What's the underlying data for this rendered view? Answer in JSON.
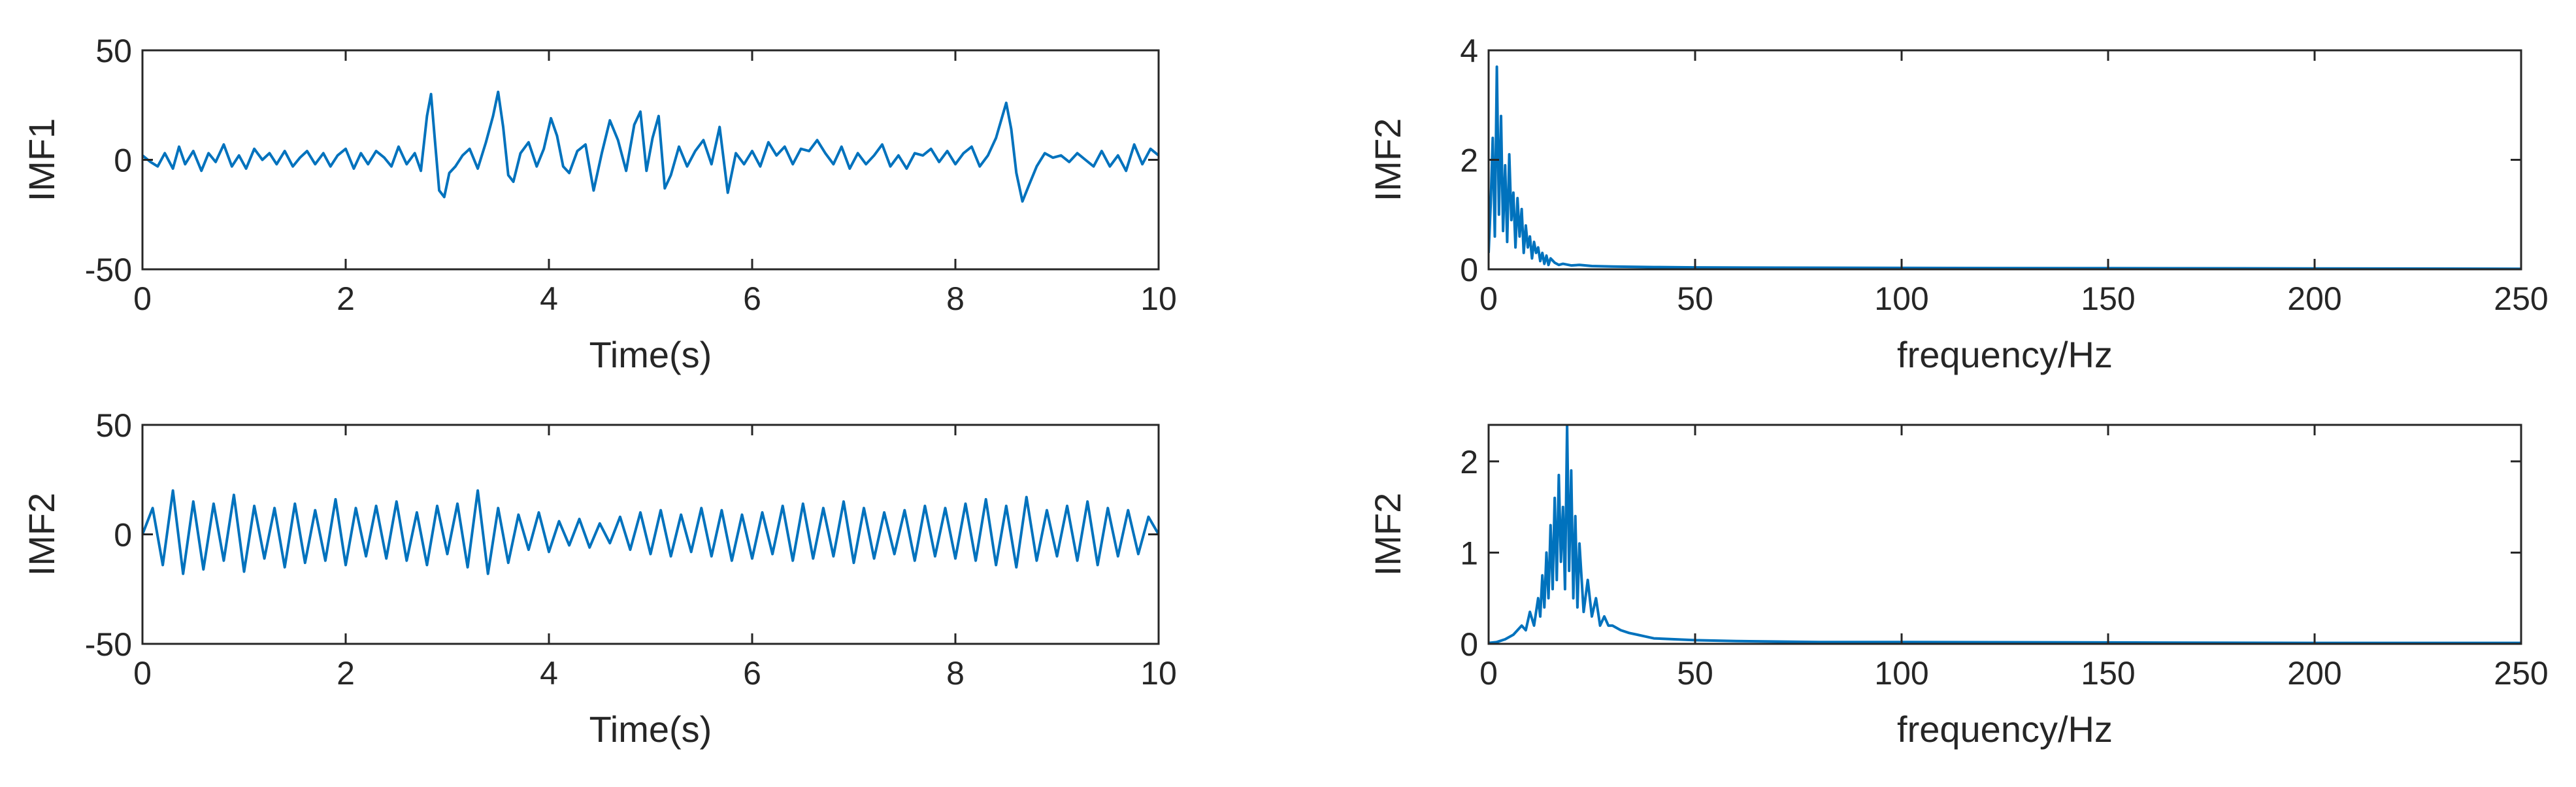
{
  "colors": {
    "line": "#0072BD",
    "axes": "#262626",
    "background": "#ffffff"
  },
  "chart_data": [
    {
      "type": "line",
      "id": "imf1-time",
      "title": "",
      "xlabel": "Time(s)",
      "ylabel": "IMF1",
      "xlim": [
        0,
        10
      ],
      "ylim": [
        -50,
        50
      ],
      "xticks": [
        0,
        2,
        4,
        6,
        8,
        10
      ],
      "yticks": [
        -50,
        0,
        50
      ],
      "grid": false,
      "legend": "none",
      "series": [
        {
          "x": [
            0,
            0.08,
            0.15,
            0.22,
            0.3,
            0.36,
            0.42,
            0.5,
            0.58,
            0.65,
            0.72,
            0.8,
            0.88,
            0.95,
            1.02,
            1.1,
            1.18,
            1.25,
            1.32,
            1.4,
            1.48,
            1.55,
            1.62,
            1.7,
            1.78,
            1.85,
            1.92,
            2.0,
            2.08,
            2.15,
            2.22,
            2.3,
            2.38,
            2.45,
            2.52,
            2.6,
            2.68,
            2.74,
            2.8,
            2.84,
            2.88,
            2.92,
            2.97,
            3.02,
            3.08,
            3.15,
            3.22,
            3.3,
            3.38,
            3.45,
            3.5,
            3.55,
            3.6,
            3.65,
            3.72,
            3.8,
            3.88,
            3.95,
            4.02,
            4.08,
            4.14,
            4.2,
            4.28,
            4.36,
            4.44,
            4.52,
            4.6,
            4.68,
            4.76,
            4.84,
            4.9,
            4.96,
            5.02,
            5.08,
            5.14,
            5.2,
            5.28,
            5.36,
            5.44,
            5.52,
            5.6,
            5.68,
            5.76,
            5.84,
            5.92,
            6.0,
            6.08,
            6.16,
            6.24,
            6.32,
            6.4,
            6.48,
            6.56,
            6.64,
            6.72,
            6.8,
            6.88,
            6.96,
            7.04,
            7.12,
            7.2,
            7.28,
            7.36,
            7.44,
            7.52,
            7.6,
            7.68,
            7.76,
            7.84,
            7.92,
            8.0,
            8.08,
            8.16,
            8.24,
            8.32,
            8.4,
            8.45,
            8.5,
            8.55,
            8.6,
            8.66,
            8.72,
            8.8,
            8.88,
            8.96,
            9.04,
            9.12,
            9.2,
            9.28,
            9.36,
            9.44,
            9.52,
            9.6,
            9.68,
            9.76,
            9.84,
            9.92,
            10.0
          ],
          "y": [
            2,
            -1,
            -3,
            3,
            -4,
            6,
            -2,
            4,
            -5,
            3,
            -1,
            7,
            -3,
            2,
            -4,
            5,
            0,
            3,
            -2,
            4,
            -3,
            1,
            4,
            -2,
            3,
            -3,
            2,
            5,
            -4,
            3,
            -2,
            4,
            1,
            -3,
            6,
            -2,
            3,
            -5,
            20,
            30,
            8,
            -14,
            -17,
            -6,
            -3,
            2,
            5,
            -4,
            8,
            20,
            31,
            15,
            -7,
            -10,
            3,
            8,
            -3,
            5,
            19,
            11,
            -3,
            -6,
            4,
            7,
            -14,
            3,
            18,
            9,
            -5,
            16,
            22,
            -5,
            10,
            20,
            -13,
            -7,
            6,
            -3,
            4,
            9,
            -2,
            15,
            -15,
            3,
            -2,
            4,
            -3,
            8,
            2,
            6,
            -2,
            5,
            4,
            9,
            3,
            -2,
            6,
            -4,
            3,
            -2,
            2,
            7,
            -3,
            2,
            -4,
            3,
            2,
            5,
            -1,
            4,
            -2,
            3,
            6,
            -3,
            2,
            10,
            18,
            26,
            14,
            -6,
            -19,
            -12,
            -3,
            3,
            1,
            2,
            -1,
            3,
            0,
            -3,
            4,
            -3,
            2,
            -5,
            7,
            -2,
            5,
            2
          ]
        }
      ]
    },
    {
      "type": "line",
      "id": "imf2-time",
      "title": "",
      "xlabel": "Time(s)",
      "ylabel": "IMF2",
      "xlim": [
        0,
        10
      ],
      "ylim": [
        -50,
        50
      ],
      "xticks": [
        0,
        2,
        4,
        6,
        8,
        10
      ],
      "yticks": [
        -50,
        0,
        50
      ],
      "grid": false,
      "legend": "none",
      "series": [
        {
          "x": [
            0,
            0.1,
            0.2,
            0.3,
            0.4,
            0.5,
            0.6,
            0.7,
            0.8,
            0.9,
            1.0,
            1.1,
            1.2,
            1.3,
            1.4,
            1.5,
            1.6,
            1.7,
            1.8,
            1.9,
            2.0,
            2.1,
            2.2,
            2.3,
            2.4,
            2.5,
            2.6,
            2.7,
            2.8,
            2.9,
            3.0,
            3.1,
            3.2,
            3.3,
            3.4,
            3.5,
            3.6,
            3.7,
            3.8,
            3.9,
            4.0,
            4.1,
            4.2,
            4.3,
            4.4,
            4.5,
            4.6,
            4.7,
            4.8,
            4.9,
            5.0,
            5.1,
            5.2,
            5.3,
            5.4,
            5.5,
            5.6,
            5.7,
            5.8,
            5.9,
            6.0,
            6.1,
            6.2,
            6.3,
            6.4,
            6.5,
            6.6,
            6.7,
            6.8,
            6.9,
            7.0,
            7.1,
            7.2,
            7.3,
            7.4,
            7.5,
            7.6,
            7.7,
            7.8,
            7.9,
            8.0,
            8.1,
            8.2,
            8.3,
            8.4,
            8.5,
            8.6,
            8.7,
            8.8,
            8.9,
            9.0,
            9.1,
            9.2,
            9.3,
            9.4,
            9.5,
            9.6,
            9.7,
            9.8,
            9.9,
            10.0
          ],
          "y": [
            0,
            12,
            -14,
            20,
            -18,
            15,
            -16,
            14,
            -12,
            18,
            -17,
            13,
            -11,
            12,
            -15,
            14,
            -13,
            11,
            -12,
            16,
            -14,
            12,
            -10,
            13,
            -11,
            15,
            -12,
            10,
            -14,
            13,
            -9,
            14,
            -15,
            20,
            -18,
            12,
            -13,
            9,
            -7,
            10,
            -8,
            6,
            -5,
            7,
            -6,
            5,
            -4,
            8,
            -7,
            10,
            -9,
            11,
            -10,
            9,
            -8,
            12,
            -10,
            11,
            -12,
            9,
            -11,
            10,
            -9,
            13,
            -12,
            14,
            -11,
            12,
            -10,
            15,
            -13,
            12,
            -11,
            10,
            -9,
            11,
            -12,
            13,
            -10,
            12,
            -11,
            14,
            -12,
            16,
            -14,
            13,
            -15,
            17,
            -12,
            11,
            -10,
            13,
            -12,
            15,
            -14,
            12,
            -10,
            11,
            -9,
            8,
            0
          ]
        }
      ]
    },
    {
      "type": "line",
      "id": "imf1-spectrum",
      "title": "",
      "xlabel": "frequency/Hz",
      "ylabel": "IMF2",
      "xlim": [
        0,
        250
      ],
      "ylim": [
        0,
        4
      ],
      "xticks": [
        0,
        50,
        100,
        150,
        200,
        250
      ],
      "yticks": [
        0,
        2,
        4
      ],
      "grid": false,
      "legend": "none",
      "series": [
        {
          "x": [
            0,
            0.5,
            1,
            1.5,
            2,
            2.5,
            3,
            3.5,
            4,
            4.5,
            5,
            5.5,
            6,
            6.5,
            7,
            7.5,
            8,
            8.5,
            9,
            9.5,
            10,
            10.5,
            11,
            11.5,
            12,
            12.5,
            13,
            13.5,
            14,
            14.5,
            15,
            16,
            17,
            18,
            20,
            22,
            25,
            30,
            40,
            50,
            70,
            100,
            150,
            200,
            250
          ],
          "y": [
            0.3,
            1.2,
            2.4,
            0.6,
            3.7,
            1.0,
            2.8,
            0.7,
            1.9,
            0.5,
            2.1,
            0.9,
            1.4,
            0.4,
            1.3,
            0.6,
            1.1,
            0.3,
            0.8,
            0.4,
            0.6,
            0.2,
            0.5,
            0.3,
            0.4,
            0.15,
            0.3,
            0.1,
            0.25,
            0.08,
            0.2,
            0.12,
            0.08,
            0.1,
            0.07,
            0.08,
            0.06,
            0.05,
            0.04,
            0.035,
            0.03,
            0.025,
            0.02,
            0.015,
            0.01
          ]
        }
      ]
    },
    {
      "type": "line",
      "id": "imf2-spectrum",
      "title": "",
      "xlabel": "frequency/Hz",
      "ylabel": "IMF2",
      "xlim": [
        0,
        250
      ],
      "ylim": [
        0,
        2.4
      ],
      "xticks": [
        0,
        50,
        100,
        150,
        200,
        250
      ],
      "yticks": [
        0,
        1,
        2
      ],
      "grid": false,
      "legend": "none",
      "series": [
        {
          "x": [
            0,
            2,
            4,
            6,
            8,
            9,
            10,
            11,
            12,
            12.5,
            13,
            13.5,
            14,
            14.5,
            15,
            15.5,
            16,
            16.5,
            17,
            17.5,
            18,
            18.5,
            19,
            19.5,
            20,
            20.5,
            21,
            21.5,
            22,
            23,
            24,
            25,
            26,
            27,
            28,
            29,
            30,
            32,
            34,
            36,
            38,
            40,
            45,
            50,
            60,
            70,
            80,
            100,
            150,
            200,
            250
          ],
          "y": [
            0.01,
            0.02,
            0.05,
            0.1,
            0.2,
            0.15,
            0.35,
            0.2,
            0.5,
            0.3,
            0.75,
            0.4,
            1.0,
            0.5,
            1.3,
            0.6,
            1.6,
            0.7,
            1.85,
            0.9,
            1.5,
            0.6,
            2.4,
            0.8,
            1.9,
            0.5,
            1.4,
            0.4,
            1.1,
            0.35,
            0.7,
            0.3,
            0.5,
            0.2,
            0.3,
            0.2,
            0.2,
            0.15,
            0.12,
            0.1,
            0.08,
            0.06,
            0.05,
            0.04,
            0.03,
            0.025,
            0.02,
            0.02,
            0.015,
            0.01,
            0.01
          ]
        }
      ]
    }
  ]
}
